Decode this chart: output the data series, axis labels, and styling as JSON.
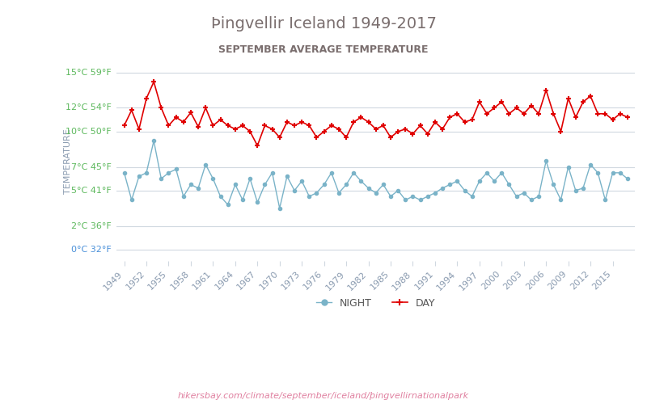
{
  "title": "Þingvellir Iceland 1949-2017",
  "subtitle": "SEPTEMBER AVERAGE TEMPERATURE",
  "ylabel": "TEMPERATURE",
  "watermark": "hikersbay.com/climate/september/iceland/þingvellirnationalpark",
  "years": [
    1949,
    1952,
    1955,
    1958,
    1961,
    1964,
    1967,
    1970,
    1973,
    1976,
    1979,
    1982,
    1985,
    1988,
    1991,
    1994,
    1997,
    2000,
    2003,
    2006,
    2009,
    2012,
    2015
  ],
  "x_years": [
    1949,
    1950,
    1951,
    1952,
    1953,
    1954,
    1955,
    1956,
    1957,
    1958,
    1959,
    1960,
    1961,
    1962,
    1963,
    1964,
    1965,
    1966,
    1967,
    1968,
    1969,
    1970,
    1971,
    1972,
    1973,
    1974,
    1975,
    1976,
    1977,
    1978,
    1979,
    1980,
    1981,
    1982,
    1983,
    1984,
    1985,
    1986,
    1987,
    1988,
    1989,
    1990,
    1991,
    1992,
    1993,
    1994,
    1995,
    1996,
    1997,
    1998,
    1999,
    2000,
    2001,
    2002,
    2003,
    2004,
    2005,
    2006,
    2007,
    2008,
    2009,
    2010,
    2011,
    2012,
    2013,
    2014,
    2015,
    2016,
    2017
  ],
  "day_values": [
    10.5,
    11.8,
    10.2,
    12.8,
    14.2,
    12.0,
    10.5,
    11.2,
    10.8,
    11.6,
    10.4,
    12.0,
    10.5,
    11.0,
    10.5,
    10.2,
    10.5,
    10.0,
    8.8,
    10.5,
    10.2,
    9.5,
    10.8,
    10.5,
    10.8,
    10.5,
    9.5,
    10.0,
    10.5,
    10.2,
    9.5,
    10.8,
    11.2,
    10.8,
    10.2,
    10.5,
    9.5,
    10.0,
    10.2,
    9.8,
    10.5,
    9.8,
    10.8,
    10.2,
    11.2,
    11.5,
    10.8,
    11.0,
    12.5,
    11.5,
    12.0,
    12.5,
    11.5,
    12.0,
    11.5,
    12.2,
    11.5,
    13.5,
    11.5,
    10.0,
    12.8,
    11.2,
    12.5,
    13.0,
    11.5,
    11.5,
    11.0,
    11.5,
    11.2
  ],
  "night_values": [
    6.5,
    4.2,
    6.2,
    6.5,
    9.2,
    6.0,
    6.5,
    6.8,
    4.5,
    5.5,
    5.2,
    7.2,
    6.0,
    4.5,
    3.8,
    5.5,
    4.2,
    6.0,
    4.0,
    5.5,
    6.5,
    3.5,
    6.2,
    5.0,
    5.8,
    4.5,
    4.8,
    5.5,
    6.5,
    4.8,
    5.5,
    6.5,
    5.8,
    5.2,
    4.8,
    5.5,
    4.5,
    5.0,
    4.2,
    4.5,
    4.2,
    4.5,
    4.8,
    5.2,
    5.5,
    5.8,
    5.0,
    4.5,
    5.8,
    6.5,
    5.8,
    6.5,
    5.5,
    4.5,
    4.8,
    4.2,
    4.5,
    7.5,
    5.5,
    4.2,
    7.0,
    5.0,
    5.2,
    7.2,
    6.5,
    4.2,
    6.5,
    6.5,
    6.0
  ],
  "day_color": "#e00000",
  "night_color": "#7ab3c8",
  "title_color": "#7a6e6e",
  "subtitle_color": "#7a6e6e",
  "ylabel_color": "#8a9bb0",
  "ytick_color_green": "#5cb85c",
  "ytick_color_blue": "#4a90d9",
  "grid_color": "#d0d8e0",
  "background_color": "#ffffff",
  "watermark_color": "#e080a0",
  "yticks_c": [
    0,
    2,
    5,
    7,
    10,
    12,
    15
  ],
  "yticks_f": [
    32,
    36,
    41,
    45,
    50,
    54,
    59
  ],
  "ylim": [
    -1,
    16
  ],
  "legend_night": "NIGHT",
  "legend_day": "DAY"
}
